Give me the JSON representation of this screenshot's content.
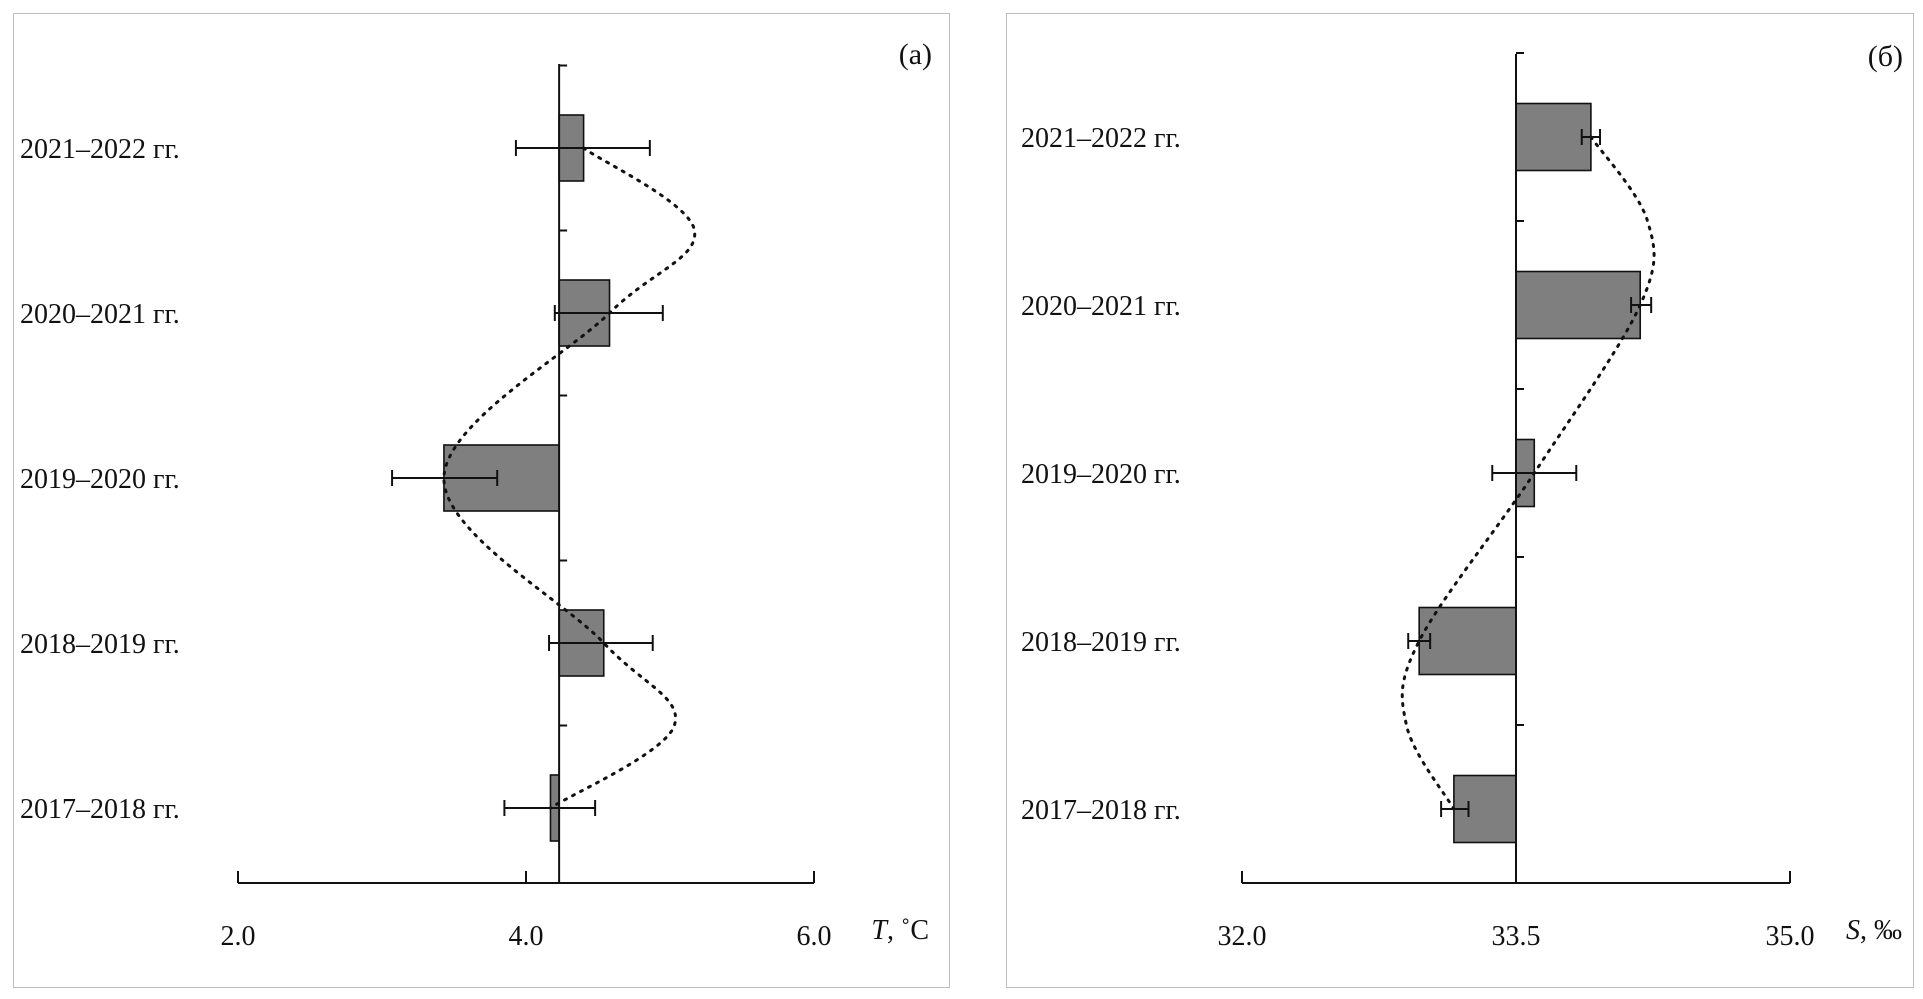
{
  "chart_data": [
    {
      "type": "bar",
      "orientation": "horizontal",
      "panel_label": "(а)",
      "categories": [
        "2021–2022 гг.",
        "2020–2021 гг.",
        "2019–2020 гг.",
        "2018–2019 гг.",
        "2017–2018 гг."
      ],
      "baseline": 4.23,
      "values": [
        4.4,
        4.58,
        3.43,
        4.54,
        4.17
      ],
      "error_low": [
        3.93,
        4.2,
        3.07,
        4.16,
        3.85
      ],
      "error_high": [
        4.86,
        4.95,
        3.8,
        4.88,
        4.48
      ],
      "trend_points": [
        {
          "category": "2021–2022 гг.",
          "value": 4.4
        },
        {
          "between": [
            "2021–2022 гг.",
            "2020–2021 гг."
          ],
          "value": 5.17
        },
        {
          "category": "2020–2021 гг.",
          "value": 4.58
        },
        {
          "category": "2019–2020 гг.",
          "value": 3.43
        },
        {
          "category": "2018–2019 гг.",
          "value": 4.54
        },
        {
          "between": [
            "2018–2019 гг.",
            "2017–2018 гг."
          ],
          "value": 5.03
        },
        {
          "category": "2017–2018 гг.",
          "value": 4.17
        }
      ],
      "xlim": [
        2.0,
        6.0
      ],
      "xticks": [
        2.0,
        4.0,
        6.0
      ],
      "xtick_labels": [
        "2.0",
        "4.0",
        "6.0"
      ],
      "xlabel_symbol": "T",
      "xlabel_unit": ", ˚С"
    },
    {
      "type": "bar",
      "orientation": "horizontal",
      "panel_label": "(б)",
      "categories": [
        "2021–2022 гг.",
        "2020–2021 гг.",
        "2019–2020 гг.",
        "2018–2019 гг.",
        "2017–2018 гг."
      ],
      "baseline": 33.5,
      "values": [
        33.91,
        34.18,
        33.6,
        32.97,
        33.16
      ],
      "error_low": [
        33.86,
        34.13,
        33.37,
        32.91,
        33.09
      ],
      "error_high": [
        33.96,
        34.24,
        33.83,
        33.03,
        33.24
      ],
      "trend_points": [
        {
          "category": "2021–2022 гг.",
          "value": 33.91
        },
        {
          "between": [
            "2021–2022 гг.",
            "2020–2021 гг."
          ],
          "value": 34.22
        },
        {
          "category": "2020–2021 гг.",
          "value": 34.18
        },
        {
          "category": "2019–2020 гг.",
          "value": 33.6
        },
        {
          "category": "2018–2019 гг.",
          "value": 32.97
        },
        {
          "between": [
            "2018–2019 гг.",
            "2017–2018 гг."
          ],
          "value": 32.9
        },
        {
          "category": "2017–2018 гг.",
          "value": 33.16
        }
      ],
      "xlim": [
        32.0,
        35.0
      ],
      "xticks": [
        32.0,
        33.5,
        35.0
      ],
      "xtick_labels": [
        "32.0",
        "33.5",
        "35.0"
      ],
      "xlabel_symbol": "S",
      "xlabel_unit": ", ‰"
    }
  ]
}
